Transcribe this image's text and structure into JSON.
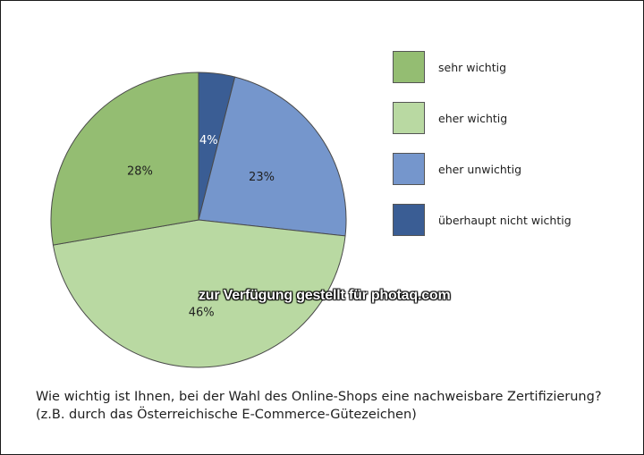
{
  "chart_data": {
    "type": "pie",
    "title": "",
    "categories": [
      "sehr wichtig",
      "eher wichtig",
      "eher unwichtig",
      "überhaupt nicht wichtig"
    ],
    "values": [
      28,
      46,
      23,
      4
    ],
    "labels": [
      "28%",
      "46%",
      "23%",
      "4%"
    ],
    "colors": [
      "#94bd72",
      "#b9d9a2",
      "#7596cc",
      "#3a5d94"
    ],
    "start_angle_deg": 0,
    "direction": "counterclockwise-from-top",
    "legend": "right"
  },
  "caption": {
    "line1": "Wie wichtig ist Ihnen, bei der Wahl des Online-Shops eine nachweisbare Zertifizierung?",
    "line2": "(z.B. durch das Österreichische E-Commerce-Gütezeichen)"
  },
  "watermark": {
    "text": "zur Verfügung gestellt für photaq.com"
  }
}
